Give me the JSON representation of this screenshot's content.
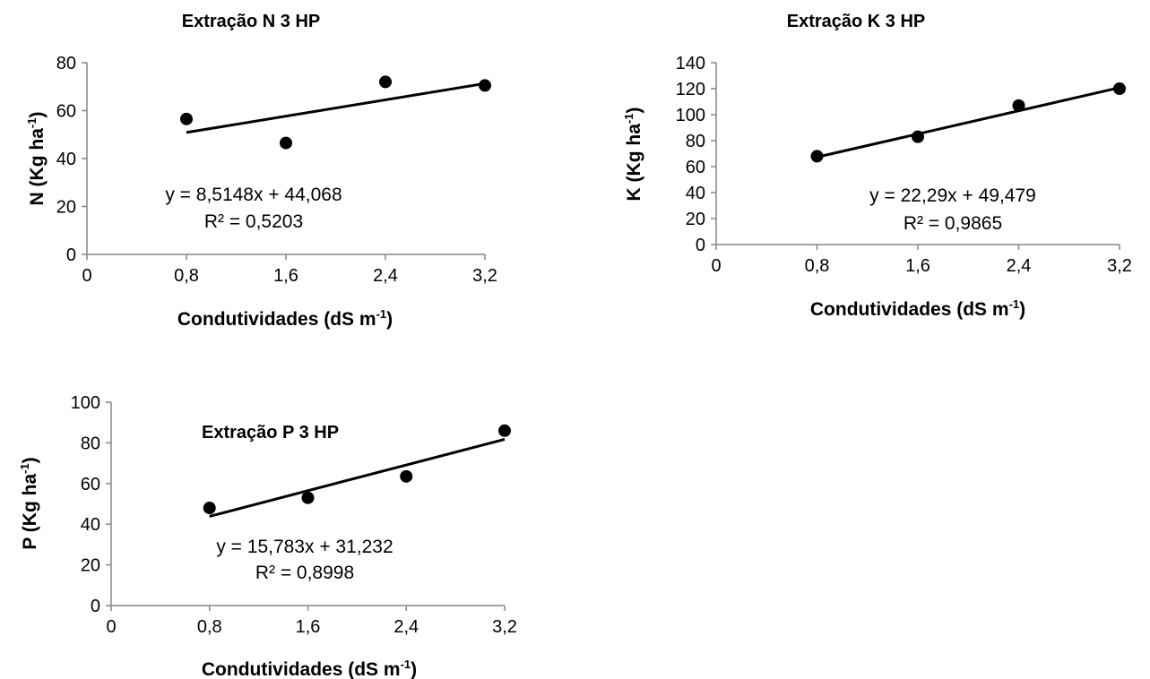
{
  "chart_data": [
    {
      "type": "scatter",
      "title": "Extração N 3 HP",
      "xlabel": "Condutividades (dS m",
      "xlabel_sup": "-1",
      "xlabel_end": ")",
      "ylabel": "N (Kg ha",
      "ylabel_sup": "-1",
      "ylabel_end": ")",
      "xlim": [
        0,
        3.2
      ],
      "ylim": [
        0,
        80
      ],
      "xticks": [
        "0",
        "0,8",
        "1,6",
        "2,4",
        "3,2"
      ],
      "xtick_values": [
        0,
        0.8,
        1.6,
        2.4,
        3.2
      ],
      "yticks": [
        "0",
        "20",
        "40",
        "60",
        "80"
      ],
      "ytick_values": [
        0,
        20,
        40,
        60,
        80
      ],
      "x": [
        0.8,
        1.6,
        2.4,
        3.2
      ],
      "y": [
        56.5,
        46.5,
        72,
        70.5
      ],
      "trendline": {
        "slope": 8.5148,
        "intercept": 44.068
      },
      "equation": "y = 8,5148x + 44,068",
      "r2": "R² = 0,5203",
      "grid": false,
      "legend": "none"
    },
    {
      "type": "scatter",
      "title": "Extração K 3 HP",
      "xlabel": "Condutividades (dS m",
      "xlabel_sup": "-1",
      "xlabel_end": ")",
      "ylabel": "K (Kg ha",
      "ylabel_sup": "-1",
      "ylabel_end": ")",
      "xlim": [
        0,
        3.2
      ],
      "ylim": [
        0,
        140
      ],
      "xticks": [
        "0",
        "0,8",
        "1,6",
        "2,4",
        "3,2"
      ],
      "xtick_values": [
        0,
        0.8,
        1.6,
        2.4,
        3.2
      ],
      "yticks": [
        "0",
        "20",
        "40",
        "60",
        "80",
        "100",
        "120",
        "140"
      ],
      "ytick_values": [
        0,
        20,
        40,
        60,
        80,
        100,
        120,
        140
      ],
      "x": [
        0.8,
        1.6,
        2.4,
        3.2
      ],
      "y": [
        68,
        83,
        107,
        120
      ],
      "trendline": {
        "slope": 22.29,
        "intercept": 49.479
      },
      "equation": "y = 22,29x + 49,479",
      "r2": "R² = 0,9865",
      "grid": false,
      "legend": "none"
    },
    {
      "type": "scatter",
      "title": "Extração P 3 HP",
      "xlabel": "Condutividades (dS m",
      "xlabel_sup": "-1",
      "xlabel_end": ")",
      "ylabel": "P (Kg ha",
      "ylabel_sup": "-1",
      "ylabel_end": ")",
      "xlim": [
        0,
        3.2
      ],
      "ylim": [
        0,
        100
      ],
      "xticks": [
        "0",
        "0,8",
        "1,6",
        "2,4",
        "3,2"
      ],
      "xtick_values": [
        0,
        0.8,
        1.6,
        2.4,
        3.2
      ],
      "yticks": [
        "0",
        "20",
        "40",
        "60",
        "80",
        "100"
      ],
      "ytick_values": [
        0,
        20,
        40,
        60,
        80,
        100
      ],
      "x": [
        0.8,
        1.6,
        2.4,
        3.2
      ],
      "y": [
        48,
        53,
        63.5,
        86
      ],
      "trendline": {
        "slope": 15.783,
        "intercept": 31.232
      },
      "equation": "y = 15,783x + 31,232",
      "r2": "R² = 0,8998",
      "grid": false,
      "legend": "none"
    }
  ]
}
